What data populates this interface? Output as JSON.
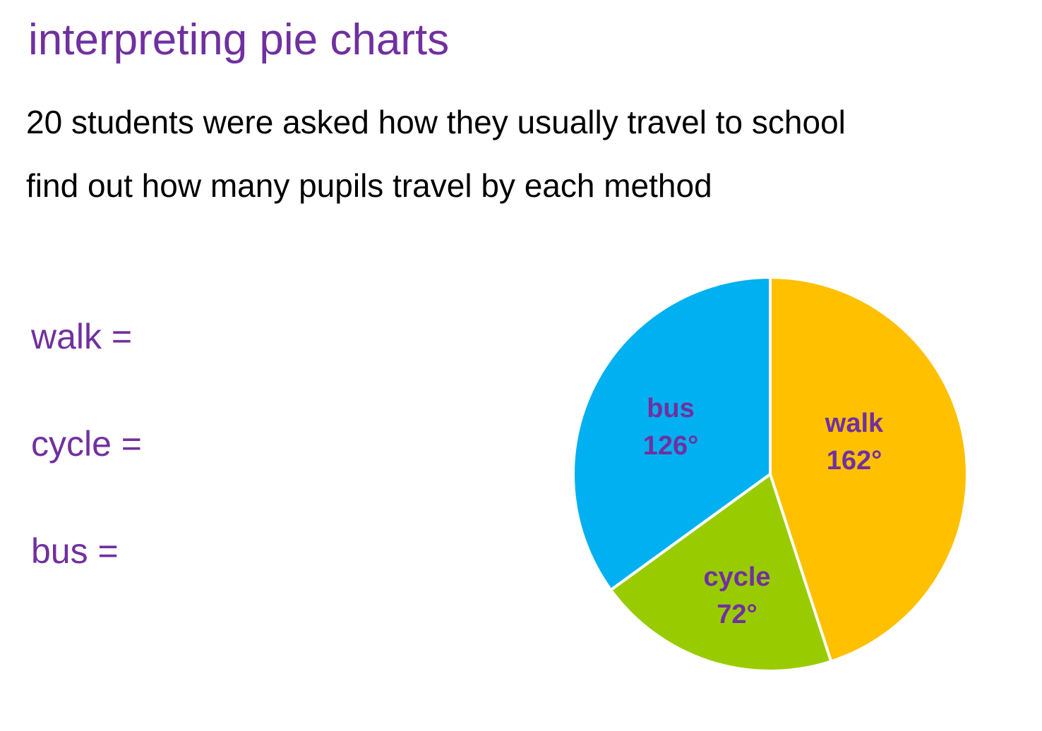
{
  "header": {
    "title": "interpreting pie charts",
    "question_line1": "20 students were asked how they usually travel to school",
    "question_line2": "find out how many pupils travel by each method"
  },
  "answers": [
    {
      "label": "walk ="
    },
    {
      "label": "cycle ="
    },
    {
      "label": "bus ="
    }
  ],
  "chart_data": {
    "type": "pie",
    "title": "",
    "total_students": 20,
    "categories": [
      "walk",
      "cycle",
      "bus"
    ],
    "values": [
      162,
      72,
      126
    ],
    "units": "degrees",
    "labels": [
      "walk",
      "cycle",
      "bus"
    ],
    "value_labels": [
      "162°",
      "72°",
      "126°"
    ],
    "colors": [
      "#ffc000",
      "#99cc00",
      "#00b0f0"
    ],
    "start_angle_deg": 0,
    "direction": "clockwise",
    "legend": "none",
    "label_color": "#7030a0"
  }
}
